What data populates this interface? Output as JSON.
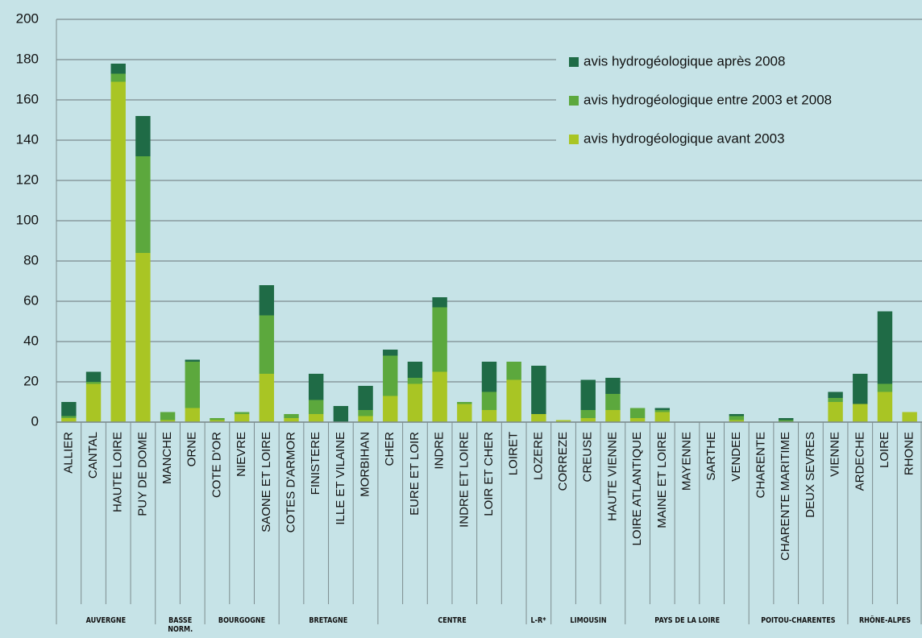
{
  "chart_data": {
    "type": "stacked_bar",
    "categories": [
      "ALLIER",
      "CANTAL",
      "HAUTE LOIRE",
      "PUY DE DOME",
      "MANCHE",
      "ORNE",
      "COTE D'OR",
      "NIEVRE",
      "SAONE ET LOIRE",
      "COTES D'ARMOR",
      "FINISTERE",
      "ILLE ET VILAINE",
      "MORBIHAN",
      "CHER",
      "EURE ET LOIR",
      "INDRE",
      "INDRE ET LOIRE",
      "LOIR ET CHER",
      "LOIRET",
      "LOZERE",
      "CORREZE",
      "CREUSE",
      "HAUTE VIENNE",
      "LOIRE ATLANTIQUE",
      "MAINE ET LOIRE",
      "MAYENNE",
      "SARTHE",
      "VENDEE",
      "CHARENTE",
      "CHARENTE MARITIME",
      "DEUX SEVRES",
      "VIENNE",
      "ARDECHE",
      "LOIRE",
      "RHONE"
    ],
    "regions": [
      "AUVERGNE",
      "AUVERGNE",
      "AUVERGNE",
      "AUVERGNE",
      "BASSE NORM.",
      "BASSE NORM.",
      "BOURGOGNE",
      "BOURGOGNE",
      "BOURGOGNE",
      "BRETAGNE",
      "BRETAGNE",
      "BRETAGNE",
      "BRETAGNE",
      "CENTRE",
      "CENTRE",
      "CENTRE",
      "CENTRE",
      "CENTRE",
      "CENTRE",
      "L-R*",
      "LIMOUSIN",
      "LIMOUSIN",
      "LIMOUSIN",
      "PAYS DE LA LOIRE",
      "PAYS DE LA LOIRE",
      "PAYS DE LA LOIRE",
      "PAYS DE LA LOIRE",
      "PAYS DE LA LOIRE",
      "POITOU-CHARENTES",
      "POITOU-CHARENTES",
      "POITOU-CHARENTES",
      "POITOU-CHARENTES",
      "RHÔNE-ALPES",
      "RHÔNE-ALPES",
      "RHÔNE-ALPES"
    ],
    "series": [
      {
        "name": "avis hydrogéologique avant 2003",
        "color": "#a9c524",
        "values": [
          2,
          19,
          169,
          84,
          1,
          7,
          1,
          4,
          24,
          2,
          4,
          0,
          3,
          13,
          19,
          25,
          9,
          6,
          21,
          4,
          1,
          2,
          6,
          2,
          5,
          0,
          0,
          1,
          0,
          0,
          0,
          10,
          9,
          15,
          5
        ]
      },
      {
        "name": "avis hydrogéologique entre 2003 et 2008",
        "color": "#5ca83d",
        "values": [
          1,
          1,
          4,
          48,
          4,
          23,
          1,
          1,
          29,
          2,
          7,
          0,
          3,
          20,
          3,
          32,
          1,
          9,
          9,
          0,
          0,
          4,
          8,
          5,
          1,
          0,
          0,
          2,
          0,
          1,
          0,
          2,
          0,
          4,
          0
        ]
      },
      {
        "name": "avis hydrogéologique après 2008",
        "color": "#1f6b46",
        "values": [
          7,
          5,
          5,
          20,
          0,
          1,
          0,
          0,
          15,
          0,
          13,
          8,
          12,
          3,
          8,
          5,
          0,
          15,
          0,
          24,
          0,
          15,
          8,
          0,
          1,
          0,
          0,
          1,
          0,
          1,
          0,
          3,
          15,
          36,
          0
        ]
      }
    ],
    "ylim": [
      0,
      200
    ],
    "yticks": [
      0,
      20,
      40,
      60,
      80,
      100,
      120,
      140,
      160,
      180,
      200
    ],
    "grid": true
  }
}
